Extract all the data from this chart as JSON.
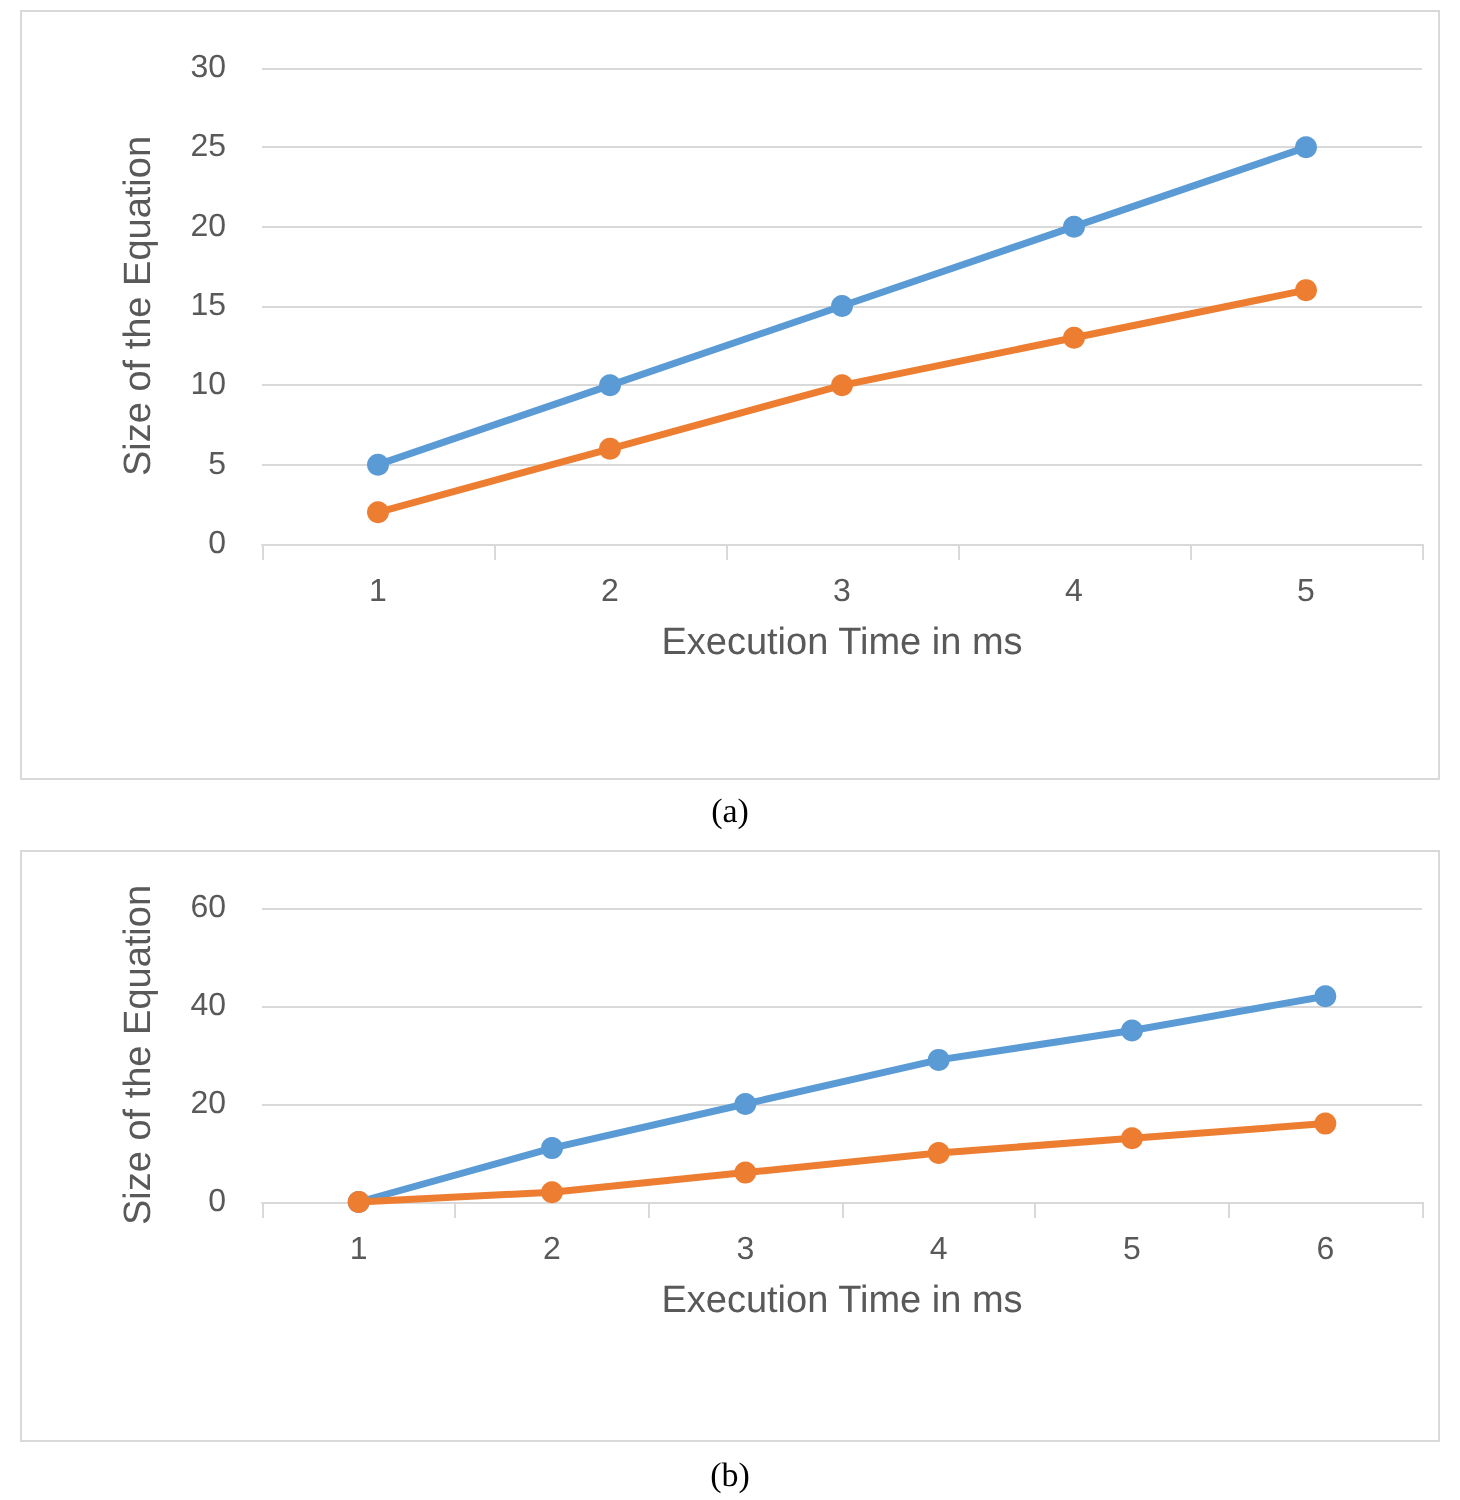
{
  "chart_data": [
    {
      "type": "line",
      "categories": [
        "1",
        "2",
        "3",
        "4",
        "5"
      ],
      "xlabel": "Execution Time in ms",
      "ylabel": "Size of the Equation",
      "ylim": [
        0,
        30
      ],
      "yticks": [
        0,
        5,
        10,
        15,
        20,
        25,
        30
      ],
      "grid": "y",
      "marker": "circle",
      "line_style": "solid",
      "annotations": [
        "(a)"
      ],
      "series": [
        {
          "color": "#5b9bd5",
          "values": [
            5,
            10,
            15,
            20,
            25
          ]
        },
        {
          "color": "#ed7d31",
          "values": [
            2,
            6,
            10,
            13,
            16
          ]
        }
      ]
    },
    {
      "type": "line",
      "categories": [
        "1",
        "2",
        "3",
        "4",
        "5",
        "6"
      ],
      "xlabel": "Execution Time in ms",
      "ylabel": "Size of the Equation",
      "ylim": [
        0,
        60
      ],
      "yticks": [
        0,
        20,
        40,
        60
      ],
      "grid": "y",
      "marker": "circle",
      "line_style": "solid",
      "annotations": [
        "(b)"
      ],
      "series": [
        {
          "color": "#5b9bd5",
          "values": [
            0,
            11,
            20,
            29,
            35,
            42
          ]
        },
        {
          "color": "#ed7d31",
          "values": [
            0,
            2,
            6,
            10,
            13,
            16
          ]
        }
      ]
    }
  ]
}
